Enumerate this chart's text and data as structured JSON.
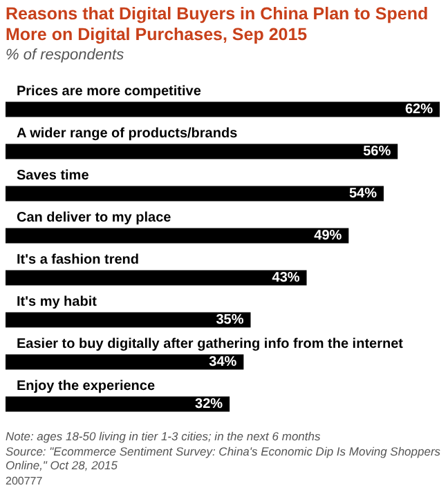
{
  "chart_data": {
    "type": "bar",
    "orientation": "horizontal",
    "title": "Reasons that Digital Buyers in China Plan to Spend More on Digital Purchases, Sep 2015",
    "subtitle": "% of respondents",
    "categories": [
      "Prices are more competitive",
      "A wider range of products/brands",
      "Saves time",
      "Can deliver to my place",
      "It's a fashion trend",
      "It's my habit",
      "Easier to buy digitally after gathering info from the internet",
      "Enjoy the experience"
    ],
    "values": [
      62,
      56,
      54,
      49,
      43,
      35,
      34,
      32
    ],
    "value_labels": [
      "62%",
      "56%",
      "54%",
      "49%",
      "43%",
      "35%",
      "34%",
      "32%"
    ],
    "color": "#000000",
    "annotations": [
      "Note: ages 18-50 living in tier 1-3 cities; in the next 6 months",
      "Source: \"Ecommerce Sentiment Survey: China's Economic Dip Is Moving Shoppers Online,\" Oct 28, 2015",
      "200777"
    ]
  }
}
